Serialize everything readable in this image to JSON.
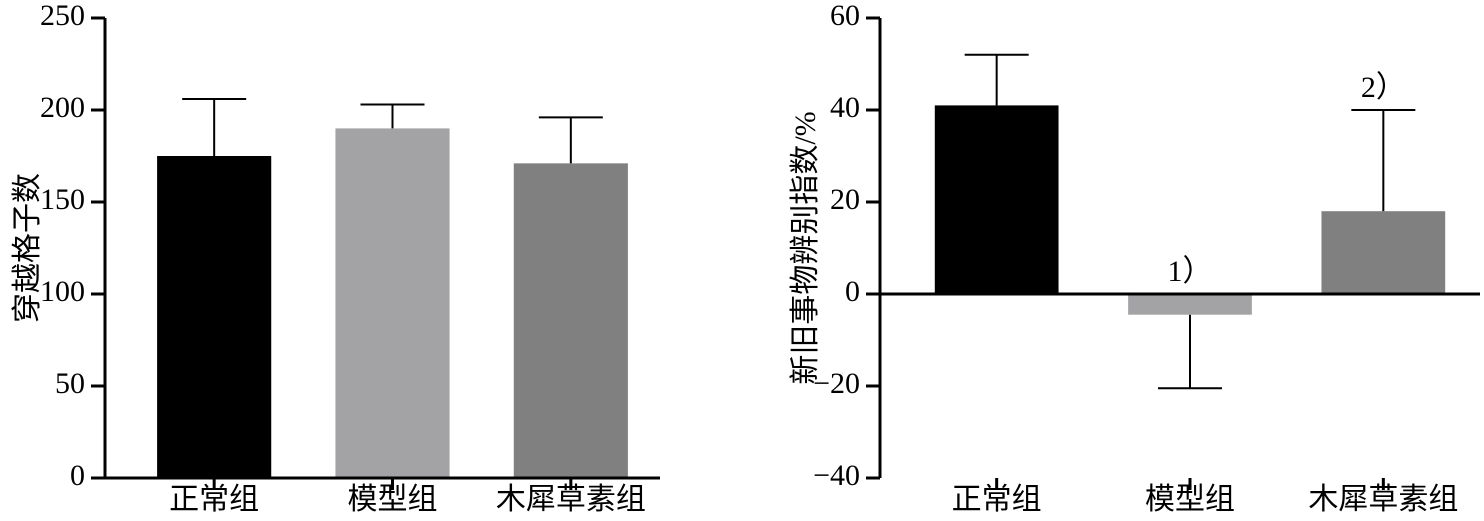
{
  "chart_data": [
    {
      "type": "bar",
      "y_label": "穿越格子数",
      "categories": [
        "正常组",
        "模型组",
        "木犀草素组"
      ],
      "values": [
        175,
        190,
        171
      ],
      "errors": [
        31,
        13,
        25
      ],
      "colors": [
        "#000000",
        "#a3a3a6",
        "#808080"
      ],
      "ylim": [
        0,
        250
      ],
      "yticks": [
        0,
        50,
        100,
        150,
        200,
        250
      ]
    },
    {
      "type": "bar",
      "y_label": "新旧事物辨别指数/%",
      "categories": [
        "正常组",
        "模型组",
        "木犀草素组"
      ],
      "values": [
        41,
        -4.5,
        18
      ],
      "errors": [
        11,
        16,
        22
      ],
      "colors": [
        "#000000",
        "#a3a3a6",
        "#808080"
      ],
      "bar_annotations": [
        null,
        "1）",
        "2）"
      ],
      "ylim": [
        -40,
        60
      ],
      "yticks": [
        {
          "value": -40,
          "label": "−40"
        },
        {
          "value": -20,
          "label": "−20"
        },
        0,
        20,
        40,
        60
      ]
    }
  ]
}
